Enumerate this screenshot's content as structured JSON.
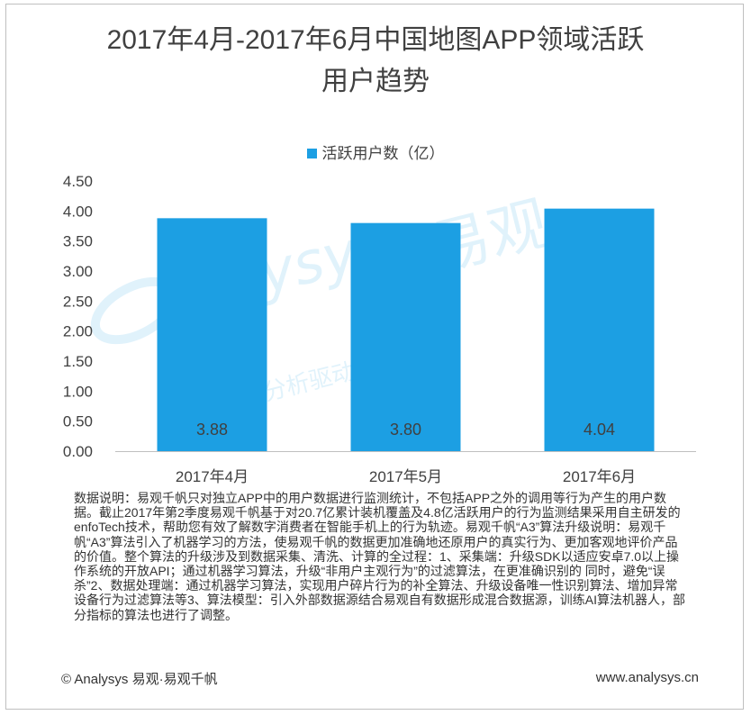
{
  "chart_data": {
    "type": "bar",
    "title": "2017年4月-2017年6月中国地图APP领域活跃用户趋势",
    "title_lines": [
      "2017年4月-2017年6月中国地图APP领域活跃",
      "用户趋势"
    ],
    "categories": [
      "2017年4月",
      "2017年5月",
      "2017年6月"
    ],
    "series": [
      {
        "name": "活跃用户数（亿）",
        "values": [
          3.88,
          3.8,
          4.04
        ]
      }
    ],
    "value_labels": [
      "3.88",
      "3.80",
      "4.04"
    ],
    "ylim": [
      0,
      4.5
    ],
    "yticks": [
      "0.00",
      "0.50",
      "1.00",
      "1.50",
      "2.00",
      "2.50",
      "3.00",
      "3.50",
      "4.00",
      "4.50"
    ],
    "ytick_values": [
      0,
      0.5,
      1,
      1.5,
      2,
      2.5,
      3,
      3.5,
      4,
      4.5
    ],
    "grid": false,
    "legend_position": "top-center",
    "bar_color": "#1c9fe3"
  },
  "note": "数据说明：易观千帆只对独立APP中的用户数据进行监测统计，不包括APP之外的调用等行为产生的用户数据。截止2017年第2季度易观千帆基于对20.7亿累计装机覆盖及4.8亿活跃用户的行为监测结果采用自主研发的enfoTech技术，帮助您有效了解数字消费者在智能手机上的行为轨迹。易观千帆“A3”算法升级说明：易观千帆“A3”算法引入了机器学习的方法，使易观千帆的数据更加准确地还原用户的真实行为、更加客观地评价产品的价值。整个算法的升级涉及到数据采集、清洗、计算的全过程：1、采集端：升级SDK以适应安卓7.0以上操作系统的开放API；通过机器学习算法，升级“非用户主观行为”的过滤算法，在更准确识别的 同时，避免“误杀”2、数据处理端：通过机器学习算法，实现用户碎片行为的补全算法、升级设备唯一性识别算法、增加异常设备行为过滤算法等3、算法模型：引入外部数据源结合易观自有数据形成混合数据源，训练AI算法机器人，部分指标的算法也进行了调整。",
  "footer": {
    "left": "© Analysys 易观·易观千帆",
    "right": "www.analysys.cn"
  },
  "watermark": {
    "brand": "易观",
    "latin": "nalysys",
    "sub": "分析驱动数字资产"
  }
}
